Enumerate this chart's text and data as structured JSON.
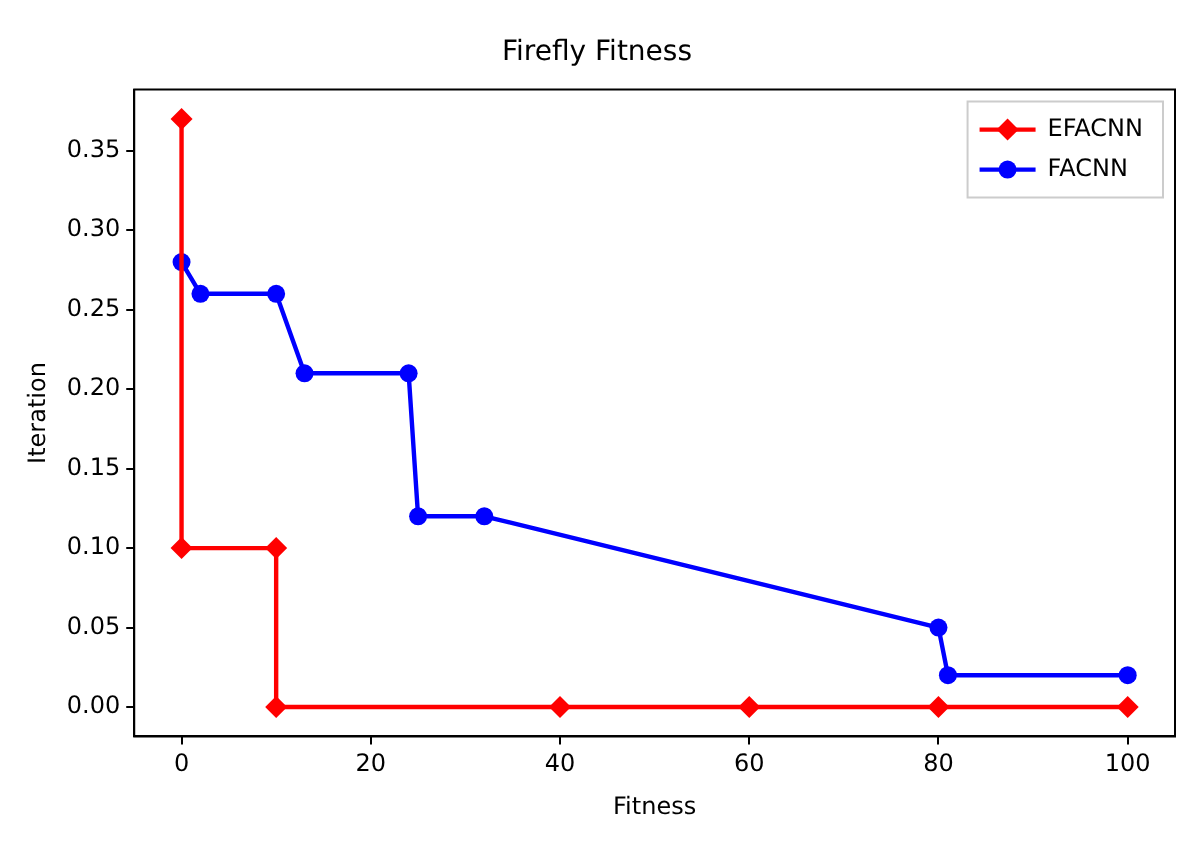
{
  "chart_data": {
    "type": "line",
    "title": "Firefly Fitness",
    "xlabel": "Fitness",
    "ylabel": "Iteration",
    "xlim": [
      -5,
      105
    ],
    "xticks": [
      0,
      20,
      40,
      60,
      80,
      100
    ],
    "ylim": [
      -0.0185,
      0.3885
    ],
    "yticks": [
      {
        "value": 0,
        "label": "0.00"
      },
      {
        "value": 0.05,
        "label": "0.05"
      },
      {
        "value": 0.1,
        "label": "0.10"
      },
      {
        "value": 0.15,
        "label": "0.15"
      },
      {
        "value": 0.2,
        "label": "0.20"
      },
      {
        "value": 0.25,
        "label": "0.25"
      },
      {
        "value": 0.3,
        "label": "0.30"
      },
      {
        "value": 0.35,
        "label": "0.35"
      }
    ],
    "legend": "top right",
    "grid": false,
    "line_style": "solid",
    "series": [
      {
        "name": "EFACNN",
        "color": "#ff0000",
        "marker": "diamond",
        "x": [
          0,
          0,
          10,
          10,
          40,
          60,
          80,
          100
        ],
        "values": [
          0.37,
          0.1,
          0.1,
          0,
          0,
          0,
          0,
          0
        ]
      },
      {
        "name": "FACNN",
        "color": "#0000ff",
        "marker": "circle",
        "x": [
          0,
          2,
          10,
          13,
          24,
          25,
          32,
          80,
          81,
          100
        ],
        "values": [
          0.28,
          0.26,
          0.26,
          0.21,
          0.21,
          0.12,
          0.12,
          0.05,
          0.02,
          0.02
        ]
      }
    ]
  }
}
